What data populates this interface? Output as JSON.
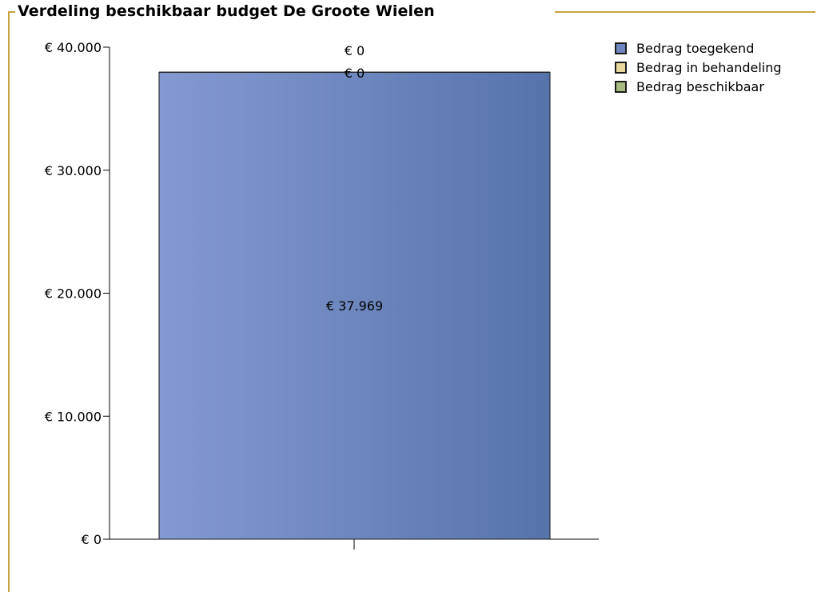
{
  "chart_data": {
    "type": "bar",
    "stacked": true,
    "title": "Verdeling beschikbaar budget  De Groote Wielen",
    "xlabel": "",
    "ylabel": "",
    "categories": [
      ""
    ],
    "ylim": [
      0,
      40000
    ],
    "yticks": [
      0,
      10000,
      20000,
      30000,
      40000
    ],
    "ytick_labels": [
      "€ 0",
      "€ 10.000",
      "€ 20.000",
      "€ 30.000",
      "€ 40.000"
    ],
    "grid": false,
    "legend_position": "top-right",
    "series": [
      {
        "name": "Bedrag toegekend",
        "values": [
          37969
        ],
        "data_label": "€ 37.969",
        "color": "#6f86c1",
        "gradient": [
          "#8599d1",
          "#5674aa"
        ]
      },
      {
        "name": "Bedrag in behandeling",
        "values": [
          0
        ],
        "data_label": "€ 0",
        "color": "#e8d89b"
      },
      {
        "name": "Bedrag beschikbaar",
        "values": [
          0
        ],
        "data_label": "€ 0",
        "color": "#a7bb7e"
      }
    ]
  }
}
